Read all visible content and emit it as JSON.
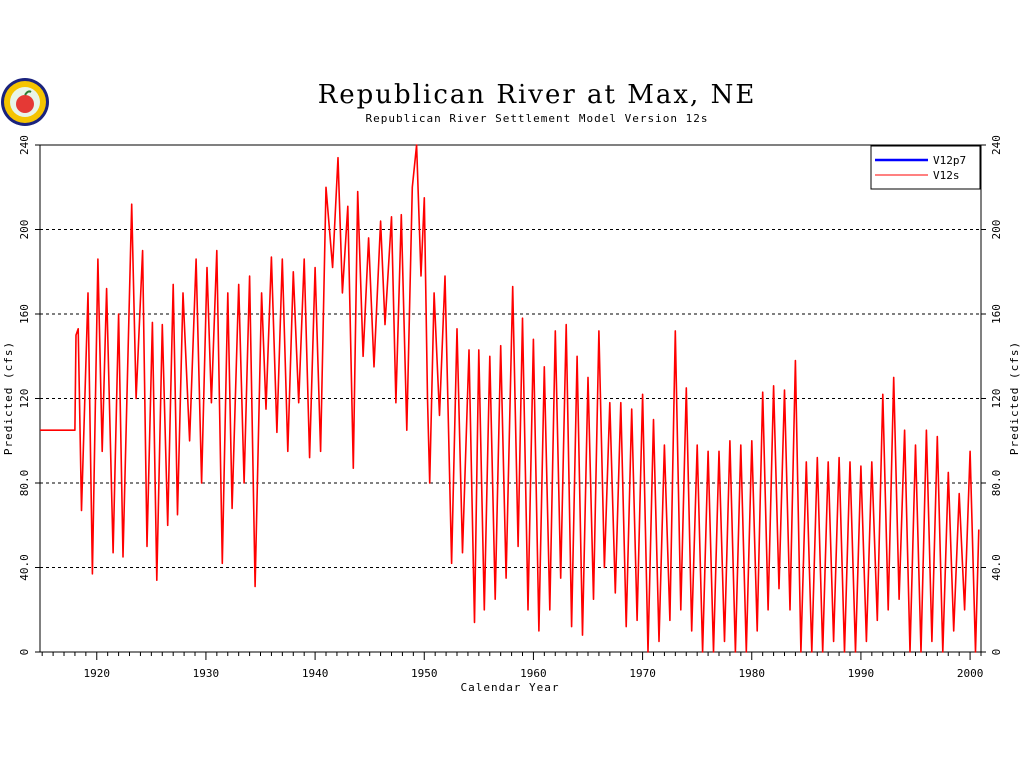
{
  "logo": {
    "icon": "apple-seal-logo-icon"
  },
  "chart_data": {
    "type": "line",
    "title": "Republican River at Max, NE",
    "subtitle": "Republican River Settlement Model Version 12s",
    "xlabel": "Calendar Year",
    "ylabel": "Predicted (cfs)",
    "ylabel_right": "Predicted (cfs)",
    "xlim": [
      1914.8,
      2001.0
    ],
    "ylim": [
      0,
      240
    ],
    "x_ticks": [
      1920,
      1930,
      1940,
      1950,
      1960,
      1970,
      1980,
      1990,
      2000
    ],
    "x_tick_labels": [
      "1920",
      "1930",
      "1940",
      "1950",
      "1960",
      "1970",
      "1980",
      "1990",
      "2000"
    ],
    "y_ticks": [
      0,
      40,
      80,
      120,
      160,
      200,
      240
    ],
    "y_tick_labels": [
      "0",
      "40.0",
      "80.0",
      "120",
      "160",
      "200",
      "240"
    ],
    "y_tick_labels_right": [
      "0",
      "40.0",
      "80.0",
      "120",
      "160",
      "200",
      "240"
    ],
    "grid": "horizontal-dashed",
    "legend_position": "top-right",
    "series": [
      {
        "name": "V12p7",
        "color": "#0000ff",
        "style": "thick",
        "note": "hidden beneath V12s",
        "x": [],
        "y": []
      },
      {
        "name": "V12s",
        "color": "#ff0000",
        "style": "thin",
        "points": [
          [
            1914.8,
            105
          ],
          [
            1918.0,
            105
          ],
          [
            1918.1,
            150
          ],
          [
            1918.3,
            153
          ],
          [
            1918.6,
            67
          ],
          [
            1919.2,
            170
          ],
          [
            1919.6,
            37
          ],
          [
            1920.1,
            186
          ],
          [
            1920.5,
            95
          ],
          [
            1920.9,
            172
          ],
          [
            1921.5,
            47
          ],
          [
            1922.0,
            160
          ],
          [
            1922.4,
            45
          ],
          [
            1923.2,
            212
          ],
          [
            1923.6,
            120
          ],
          [
            1924.2,
            190
          ],
          [
            1924.6,
            50
          ],
          [
            1925.1,
            156
          ],
          [
            1925.5,
            34
          ],
          [
            1926.0,
            155
          ],
          [
            1926.5,
            60
          ],
          [
            1927.0,
            174
          ],
          [
            1927.4,
            65
          ],
          [
            1927.9,
            170
          ],
          [
            1928.5,
            100
          ],
          [
            1929.1,
            186
          ],
          [
            1929.6,
            80
          ],
          [
            1930.1,
            182
          ],
          [
            1930.5,
            118
          ],
          [
            1931.0,
            190
          ],
          [
            1931.5,
            42
          ],
          [
            1932.0,
            170
          ],
          [
            1932.4,
            68
          ],
          [
            1933.0,
            174
          ],
          [
            1933.5,
            80
          ],
          [
            1934.0,
            178
          ],
          [
            1934.5,
            31
          ],
          [
            1935.1,
            170
          ],
          [
            1935.5,
            115
          ],
          [
            1936.0,
            187
          ],
          [
            1936.5,
            104
          ],
          [
            1937.0,
            186
          ],
          [
            1937.5,
            95
          ],
          [
            1938.0,
            180
          ],
          [
            1938.5,
            118
          ],
          [
            1939.0,
            186
          ],
          [
            1939.5,
            92
          ],
          [
            1940.0,
            182
          ],
          [
            1940.5,
            95
          ],
          [
            1941.0,
            220
          ],
          [
            1941.6,
            182
          ],
          [
            1942.1,
            234
          ],
          [
            1942.5,
            170
          ],
          [
            1943.0,
            211
          ],
          [
            1943.5,
            87
          ],
          [
            1943.9,
            218
          ],
          [
            1944.4,
            140
          ],
          [
            1944.9,
            196
          ],
          [
            1945.4,
            135
          ],
          [
            1946.0,
            204
          ],
          [
            1946.4,
            155
          ],
          [
            1947.0,
            206
          ],
          [
            1947.4,
            118
          ],
          [
            1947.9,
            207
          ],
          [
            1948.4,
            105
          ],
          [
            1948.9,
            220
          ],
          [
            1949.3,
            240
          ],
          [
            1949.7,
            178
          ],
          [
            1950.0,
            215
          ],
          [
            1950.3,
            120
          ],
          [
            1950.5,
            80
          ],
          [
            1950.9,
            170
          ],
          [
            1951.4,
            112
          ],
          [
            1951.9,
            178
          ],
          [
            1952.5,
            42
          ],
          [
            1953.0,
            153
          ],
          [
            1953.5,
            47
          ],
          [
            1954.1,
            143
          ],
          [
            1954.6,
            14
          ],
          [
            1955.0,
            143
          ],
          [
            1955.5,
            20
          ],
          [
            1956.0,
            140
          ],
          [
            1956.5,
            25
          ],
          [
            1957.0,
            145
          ],
          [
            1957.5,
            35
          ],
          [
            1958.1,
            173
          ],
          [
            1958.6,
            50
          ],
          [
            1959.0,
            158
          ],
          [
            1959.5,
            20
          ],
          [
            1960.0,
            148
          ],
          [
            1960.5,
            10
          ],
          [
            1961.0,
            135
          ],
          [
            1961.5,
            20
          ],
          [
            1962.0,
            152
          ],
          [
            1962.5,
            35
          ],
          [
            1963.0,
            155
          ],
          [
            1963.5,
            12
          ],
          [
            1964.0,
            140
          ],
          [
            1964.5,
            8
          ],
          [
            1965.0,
            130
          ],
          [
            1965.5,
            25
          ],
          [
            1966.0,
            152
          ],
          [
            1966.5,
            40
          ],
          [
            1967.0,
            118
          ],
          [
            1967.5,
            28
          ],
          [
            1968.0,
            118
          ],
          [
            1968.5,
            12
          ],
          [
            1969.0,
            115
          ],
          [
            1969.5,
            15
          ],
          [
            1970.0,
            122
          ],
          [
            1970.5,
            0
          ],
          [
            1971.0,
            110
          ],
          [
            1971.5,
            5
          ],
          [
            1972.0,
            98
          ],
          [
            1972.5,
            15
          ],
          [
            1973.0,
            152
          ],
          [
            1973.5,
            20
          ],
          [
            1974.0,
            125
          ],
          [
            1974.5,
            10
          ],
          [
            1975.0,
            98
          ],
          [
            1975.5,
            0
          ],
          [
            1976.0,
            95
          ],
          [
            1976.5,
            0
          ],
          [
            1977.0,
            95
          ],
          [
            1977.5,
            5
          ],
          [
            1978.0,
            100
          ],
          [
            1978.5,
            0
          ],
          [
            1979.0,
            98
          ],
          [
            1979.5,
            0
          ],
          [
            1980.0,
            100
          ],
          [
            1980.5,
            10
          ],
          [
            1981.0,
            123
          ],
          [
            1981.5,
            20
          ],
          [
            1982.0,
            126
          ],
          [
            1982.5,
            30
          ],
          [
            1983.0,
            124
          ],
          [
            1983.5,
            20
          ],
          [
            1984.0,
            138
          ],
          [
            1984.5,
            0
          ],
          [
            1985.0,
            90
          ],
          [
            1985.5,
            0
          ],
          [
            1986.0,
            92
          ],
          [
            1986.5,
            0
          ],
          [
            1987.0,
            90
          ],
          [
            1987.5,
            5
          ],
          [
            1988.0,
            92
          ],
          [
            1988.5,
            0
          ],
          [
            1989.0,
            90
          ],
          [
            1989.5,
            0
          ],
          [
            1990.0,
            88
          ],
          [
            1990.5,
            5
          ],
          [
            1991.0,
            90
          ],
          [
            1991.5,
            15
          ],
          [
            1992.0,
            122
          ],
          [
            1992.5,
            20
          ],
          [
            1993.0,
            130
          ],
          [
            1993.5,
            25
          ],
          [
            1994.0,
            105
          ],
          [
            1994.5,
            0
          ],
          [
            1995.0,
            98
          ],
          [
            1995.5,
            0
          ],
          [
            1996.0,
            105
          ],
          [
            1996.5,
            5
          ],
          [
            1997.0,
            102
          ],
          [
            1997.5,
            0
          ],
          [
            1998.0,
            85
          ],
          [
            1998.5,
            10
          ],
          [
            1999.0,
            75
          ],
          [
            1999.5,
            20
          ],
          [
            2000.0,
            95
          ],
          [
            2000.5,
            0
          ],
          [
            2000.8,
            58
          ]
        ]
      }
    ]
  }
}
